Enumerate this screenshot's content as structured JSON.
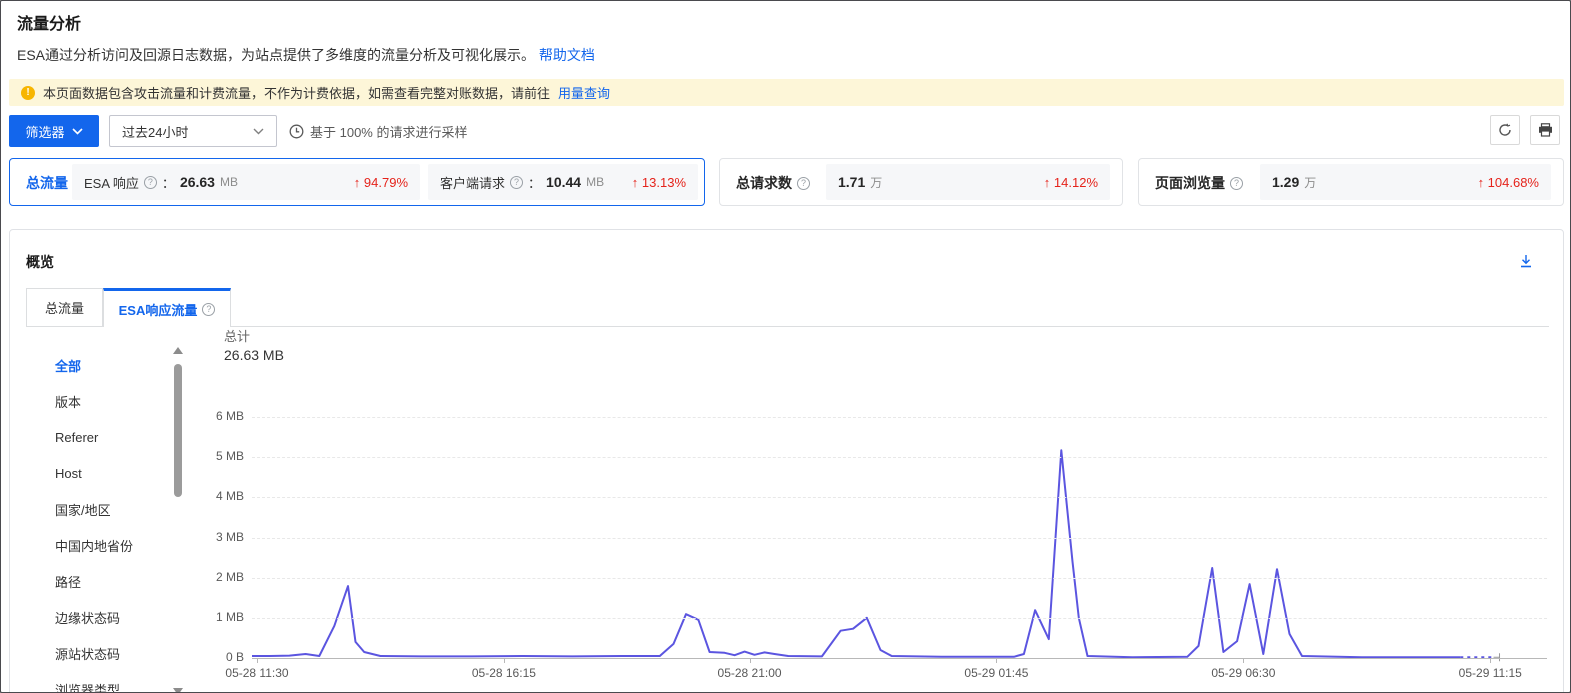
{
  "page": {
    "title": "流量分析",
    "description": "ESA通过分析访问及回源日志数据，为站点提供了多维度的流量分析及可视化展示。",
    "help_link": "帮助文档"
  },
  "banner": {
    "text": "本页面数据包含攻击流量和计费流量，不作为计费依据，如需查看完整对账数据，请前往",
    "link": "用量查询"
  },
  "toolbar": {
    "filter_button": "筛选器",
    "time_range": "过去24小时",
    "sampling_note": "基于 100% 的请求进行采样"
  },
  "stats": {
    "total_traffic": {
      "label": "总流量",
      "metrics": [
        {
          "name": "ESA 响应",
          "colon": "：",
          "value": "26.63",
          "unit": "MB",
          "delta": "↑ 94.79%"
        },
        {
          "name": "客户端请求",
          "colon": "：",
          "value": "10.44",
          "unit": "MB",
          "delta": "↑ 13.13%"
        }
      ]
    },
    "total_requests": {
      "label": "总请求数",
      "value": "1.71",
      "unit": "万",
      "delta": "↑ 14.12%"
    },
    "page_views": {
      "label": "页面浏览量",
      "value": "1.29",
      "unit": "万",
      "delta": "↑ 104.68%"
    }
  },
  "panel": {
    "title": "概览",
    "tabs": [
      {
        "label": "总流量"
      },
      {
        "label": "ESA响应流量"
      }
    ],
    "categories": [
      "全部",
      "版本",
      "Referer",
      "Host",
      "国家/地区",
      "中国内地省份",
      "路径",
      "边缘状态码",
      "源站状态码",
      "浏览器类型"
    ],
    "active_category": "全部"
  },
  "chart_data": {
    "type": "line",
    "total_label": "总计",
    "total_value": "26.63 MB",
    "ylabel": "",
    "xlabel": "",
    "ylim": [
      0,
      6
    ],
    "grid": "dashed-horizontal",
    "legend_position": "none",
    "y_ticks": [
      "6 MB",
      "5 MB",
      "4 MB",
      "3 MB",
      "2 MB",
      "1 MB",
      "0 B"
    ],
    "x_ticks": [
      {
        "label": "05-28 11:30",
        "pos": 0.004
      },
      {
        "label": "05-28 16:15",
        "pos": 0.202
      },
      {
        "label": "05-28 21:00",
        "pos": 0.399
      },
      {
        "label": "05-29 01:45",
        "pos": 0.597
      },
      {
        "label": "05-29 06:30",
        "pos": 0.795
      },
      {
        "label": "05-29 11:15",
        "pos": 0.993
      }
    ],
    "series": [
      {
        "name": "ESA响应流量",
        "color": "#5b55e0",
        "unit": "MB",
        "points": [
          [
            0.0,
            0.05
          ],
          [
            0.014,
            0.05
          ],
          [
            0.03,
            0.06
          ],
          [
            0.043,
            0.1
          ],
          [
            0.054,
            0.05
          ],
          [
            0.066,
            0.8
          ],
          [
            0.077,
            1.79
          ],
          [
            0.083,
            0.4
          ],
          [
            0.09,
            0.15
          ],
          [
            0.103,
            0.05
          ],
          [
            0.136,
            0.04
          ],
          [
            0.176,
            0.04
          ],
          [
            0.217,
            0.05
          ],
          [
            0.257,
            0.04
          ],
          [
            0.297,
            0.05
          ],
          [
            0.327,
            0.05
          ],
          [
            0.338,
            0.35
          ],
          [
            0.348,
            1.09
          ],
          [
            0.358,
            0.95
          ],
          [
            0.367,
            0.15
          ],
          [
            0.379,
            0.13
          ],
          [
            0.387,
            0.07
          ],
          [
            0.395,
            0.16
          ],
          [
            0.403,
            0.08
          ],
          [
            0.411,
            0.14
          ],
          [
            0.419,
            0.1
          ],
          [
            0.43,
            0.05
          ],
          [
            0.457,
            0.04
          ],
          [
            0.472,
            0.68
          ],
          [
            0.482,
            0.73
          ],
          [
            0.493,
            1.0
          ],
          [
            0.504,
            0.2
          ],
          [
            0.513,
            0.05
          ],
          [
            0.553,
            0.03
          ],
          [
            0.593,
            0.03
          ],
          [
            0.611,
            0.03
          ],
          [
            0.619,
            0.1
          ],
          [
            0.628,
            1.19
          ],
          [
            0.639,
            0.47
          ],
          [
            0.649,
            5.17
          ],
          [
            0.658,
            2.4
          ],
          [
            0.663,
            1.0
          ],
          [
            0.67,
            0.05
          ],
          [
            0.706,
            0.02
          ],
          [
            0.75,
            0.03
          ],
          [
            0.759,
            0.3
          ],
          [
            0.77,
            2.24
          ],
          [
            0.779,
            0.15
          ],
          [
            0.79,
            0.42
          ],
          [
            0.8,
            1.84
          ],
          [
            0.811,
            0.1
          ],
          [
            0.822,
            2.21
          ],
          [
            0.832,
            0.6
          ],
          [
            0.842,
            0.05
          ],
          [
            0.89,
            0.02
          ],
          [
            0.938,
            0.02
          ],
          [
            0.969,
            0.02
          ]
        ],
        "dashed_tail": [
          [
            0.969,
            0.02
          ],
          [
            0.994,
            0.02
          ]
        ]
      }
    ]
  },
  "icons": {
    "help": "?",
    "warning": "!"
  },
  "colors": {
    "accent": "#1366ec",
    "danger": "#e5231b",
    "line": "#5b55e0",
    "banner_bg": "#fdf6d8",
    "banner_icon": "#f7b500"
  }
}
